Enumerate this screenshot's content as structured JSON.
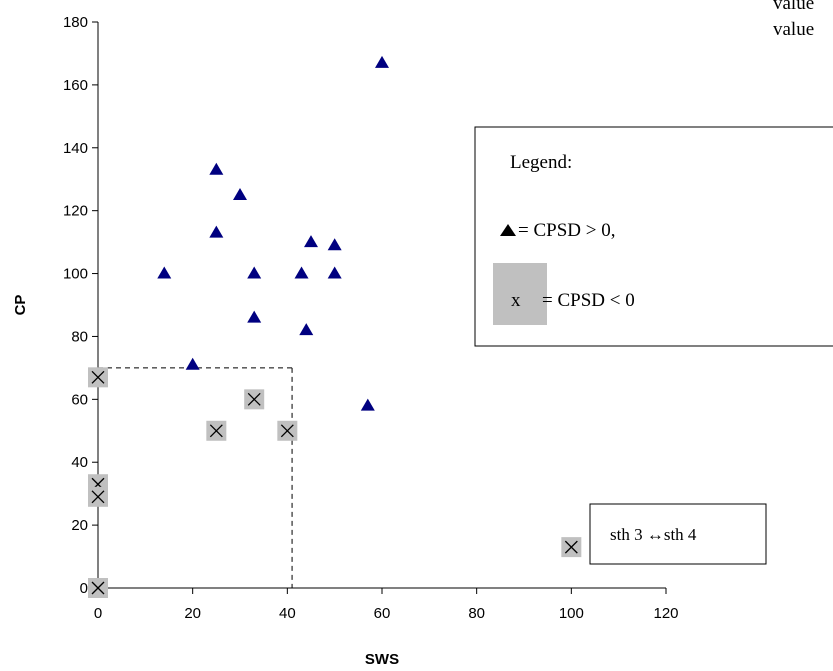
{
  "chart_data": {
    "type": "scatter",
    "title": "",
    "xlabel": "SWS",
    "ylabel": "CP",
    "xlim": [
      0,
      120
    ],
    "ylim": [
      0,
      180
    ],
    "xticks": [
      "0",
      "20",
      "40",
      "60",
      "80",
      "100",
      "120"
    ],
    "yticks": [
      "0",
      "20",
      "40",
      "60",
      "80",
      "100",
      "120",
      "140",
      "160",
      "180"
    ],
    "grid": false,
    "series": [
      {
        "marker": "triangle",
        "color": "#000080",
        "points": [
          [
            60,
            167
          ],
          [
            25,
            133
          ],
          [
            30,
            125
          ],
          [
            25,
            113
          ],
          [
            45,
            110
          ],
          [
            50,
            109
          ],
          [
            14,
            100
          ],
          [
            33,
            100
          ],
          [
            43,
            100
          ],
          [
            50,
            100
          ],
          [
            33,
            86
          ],
          [
            44,
            82
          ],
          [
            20,
            71
          ],
          [
            57,
            58
          ]
        ]
      },
      {
        "marker": "x-box",
        "color": "#000000",
        "box_color": "#c0c0c0",
        "points": [
          [
            0,
            67
          ],
          [
            33,
            60
          ],
          [
            25,
            50
          ],
          [
            40,
            50
          ],
          [
            0,
            33
          ],
          [
            0,
            29
          ],
          [
            0,
            0
          ],
          [
            100,
            13
          ]
        ]
      }
    ],
    "threshold_lines": {
      "x": 41,
      "y": 70,
      "style": "dashed"
    },
    "legend": {
      "position": "right",
      "title": "Legend:",
      "triangle_entry": "= CPSD > 0,",
      "x_glyph": "x",
      "x_entry": "= CPSD < 0"
    },
    "annotation": "sth 3 ↔sth 4",
    "partial_text": [
      "value",
      "value"
    ]
  }
}
